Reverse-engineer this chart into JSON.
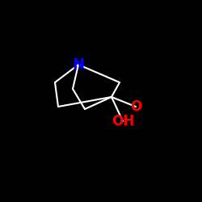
{
  "background_color": "#000000",
  "atom_N": {
    "label": "N",
    "color": "#0000ff",
    "fontsize": 13,
    "fontweight": "bold"
  },
  "atom_O": {
    "label": "O",
    "color": "#ff0000",
    "fontsize": 12,
    "fontweight": "bold"
  },
  "atom_OH": {
    "label": "OH",
    "color": "#ff0000",
    "fontsize": 12,
    "fontweight": "bold"
  },
  "bond_color": "#ffffff",
  "bond_lw": 1.5,
  "figsize": [
    2.5,
    2.5
  ],
  "dpi": 100
}
